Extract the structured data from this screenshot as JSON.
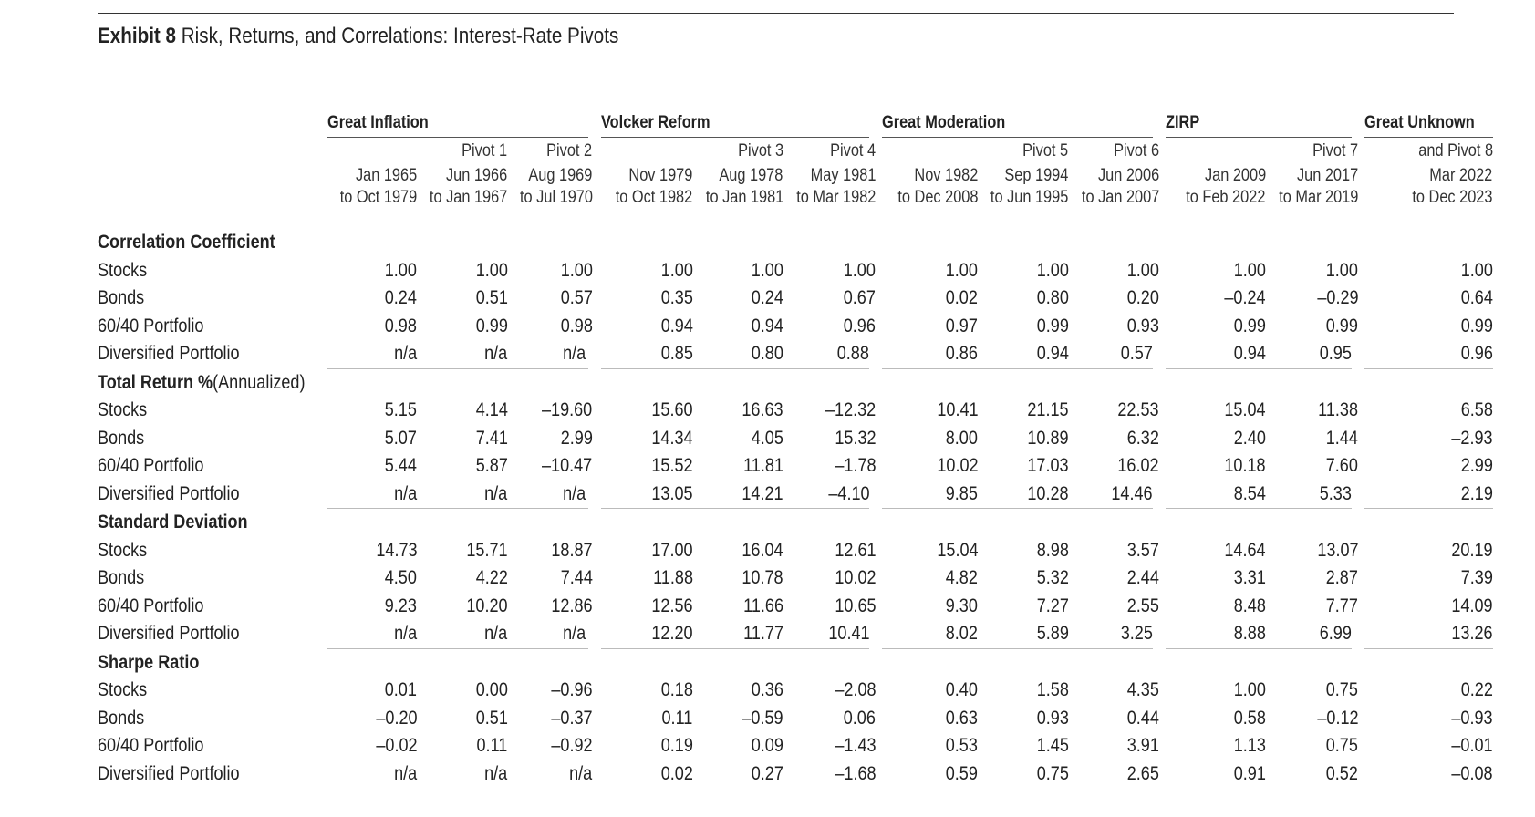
{
  "title": {
    "bold": "Exhibit 8",
    "rest": " Risk, Returns, and Correlations: Interest-Rate Pivots"
  },
  "groups": [
    {
      "name": "Great Inflation"
    },
    {
      "name": "Volcker Reform"
    },
    {
      "name": "Great Moderation"
    },
    {
      "name": "ZIRP"
    },
    {
      "name": "Great Unknown"
    }
  ],
  "columns": [
    {
      "pivot": "",
      "from": "Jan 1965",
      "to": "to Oct 1979"
    },
    {
      "pivot": "Pivot 1",
      "from": "Jun 1966",
      "to": "to Jan 1967"
    },
    {
      "pivot": "Pivot 2",
      "from": "Aug 1969",
      "to": "to Jul 1970"
    },
    {
      "pivot": "",
      "from": "Nov 1979",
      "to": "to Oct 1982"
    },
    {
      "pivot": "Pivot 3",
      "from": "Aug 1978",
      "to": "to Jan 1981"
    },
    {
      "pivot": "Pivot 4",
      "from": "May 1981",
      "to": "to Mar 1982"
    },
    {
      "pivot": "",
      "from": "Nov 1982",
      "to": "to Dec 2008"
    },
    {
      "pivot": "Pivot 5",
      "from": "Sep 1994",
      "to": "to Jun 1995"
    },
    {
      "pivot": "Pivot 6",
      "from": "Jun 2006",
      "to": "to Jan 2007"
    },
    {
      "pivot": "",
      "from": "Jan 2009",
      "to": "to Feb 2022"
    },
    {
      "pivot": "Pivot 7",
      "from": "Jun 2017",
      "to": "to Mar 2019"
    },
    {
      "pivot": "and Pivot 8",
      "from": "Mar 2022",
      "to": "to Dec 2023"
    }
  ],
  "sections": [
    {
      "title": "Correlation Coefficient",
      "subtitle": "",
      "rows": [
        {
          "label": "Stocks",
          "values": [
            "1.00",
            "1.00",
            "1.00",
            "1.00",
            "1.00",
            "1.00",
            "1.00",
            "1.00",
            "1.00",
            "1.00",
            "1.00",
            "1.00"
          ]
        },
        {
          "label": "Bonds",
          "values": [
            "0.24",
            "0.51",
            "0.57",
            "0.35",
            "0.24",
            "0.67",
            "0.02",
            "0.80",
            "0.20",
            "–0.24",
            "–0.29",
            "0.64"
          ]
        },
        {
          "label": "60/40 Portfolio",
          "values": [
            "0.98",
            "0.99",
            "0.98",
            "0.94",
            "0.94",
            "0.96",
            "0.97",
            "0.99",
            "0.93",
            "0.99",
            "0.99",
            "0.99"
          ]
        },
        {
          "label": "Diversified Portfolio",
          "values": [
            "n/a",
            "n/a",
            "n/a",
            "0.85",
            "0.80",
            "0.88",
            "0.86",
            "0.94",
            "0.57",
            "0.94",
            "0.95",
            "0.96"
          ]
        }
      ]
    },
    {
      "title": "Total Return %",
      "subtitle": " (Annualized)",
      "rows": [
        {
          "label": "Stocks",
          "values": [
            "5.15",
            "4.14",
            "–19.60",
            "15.60",
            "16.63",
            "–12.32",
            "10.41",
            "21.15",
            "22.53",
            "15.04",
            "11.38",
            "6.58"
          ]
        },
        {
          "label": "Bonds",
          "values": [
            "5.07",
            "7.41",
            "2.99",
            "14.34",
            "4.05",
            "15.32",
            "8.00",
            "10.89",
            "6.32",
            "2.40",
            "1.44",
            "–2.93"
          ]
        },
        {
          "label": "60/40 Portfolio",
          "values": [
            "5.44",
            "5.87",
            "–10.47",
            "15.52",
            "11.81",
            "–1.78",
            "10.02",
            "17.03",
            "16.02",
            "10.18",
            "7.60",
            "2.99"
          ]
        },
        {
          "label": "Diversified Portfolio",
          "values": [
            "n/a",
            "n/a",
            "n/a",
            "13.05",
            "14.21",
            "–4.10",
            "9.85",
            "10.28",
            "14.46",
            "8.54",
            "5.33",
            "2.19"
          ]
        }
      ]
    },
    {
      "title": "Standard Deviation",
      "subtitle": "",
      "rows": [
        {
          "label": "Stocks",
          "values": [
            "14.73",
            "15.71",
            "18.87",
            "17.00",
            "16.04",
            "12.61",
            "15.04",
            "8.98",
            "3.57",
            "14.64",
            "13.07",
            "20.19"
          ]
        },
        {
          "label": "Bonds",
          "values": [
            "4.50",
            "4.22",
            "7.44",
            "11.88",
            "10.78",
            "10.02",
            "4.82",
            "5.32",
            "2.44",
            "3.31",
            "2.87",
            "7.39"
          ]
        },
        {
          "label": "60/40 Portfolio",
          "values": [
            "9.23",
            "10.20",
            "12.86",
            "12.56",
            "11.66",
            "10.65",
            "9.30",
            "7.27",
            "2.55",
            "8.48",
            "7.77",
            "14.09"
          ]
        },
        {
          "label": "Diversified Portfolio",
          "values": [
            "n/a",
            "n/a",
            "n/a",
            "12.20",
            "11.77",
            "10.41",
            "8.02",
            "5.89",
            "3.25",
            "8.88",
            "6.99",
            "13.26"
          ]
        }
      ]
    },
    {
      "title": "Sharpe Ratio",
      "subtitle": "",
      "rows": [
        {
          "label": "Stocks",
          "values": [
            "0.01",
            "0.00",
            "–0.96",
            "0.18",
            "0.36",
            "–2.08",
            "0.40",
            "1.58",
            "4.35",
            "1.00",
            "0.75",
            "0.22"
          ]
        },
        {
          "label": "Bonds",
          "values": [
            "–0.20",
            "0.51",
            "–0.37",
            "0.11",
            "–0.59",
            "0.06",
            "0.63",
            "0.93",
            "0.44",
            "0.58",
            "–0.12",
            "–0.93"
          ]
        },
        {
          "label": "60/40 Portfolio",
          "values": [
            "–0.02",
            "0.11",
            "–0.92",
            "0.19",
            "0.09",
            "–1.43",
            "0.53",
            "1.45",
            "3.91",
            "1.13",
            "0.75",
            "–0.01"
          ]
        },
        {
          "label": "Diversified Portfolio",
          "values": [
            "n/a",
            "n/a",
            "n/a",
            "0.02",
            "0.27",
            "–1.68",
            "0.59",
            "0.75",
            "2.65",
            "0.91",
            "0.52",
            "–0.08"
          ]
        }
      ]
    }
  ]
}
